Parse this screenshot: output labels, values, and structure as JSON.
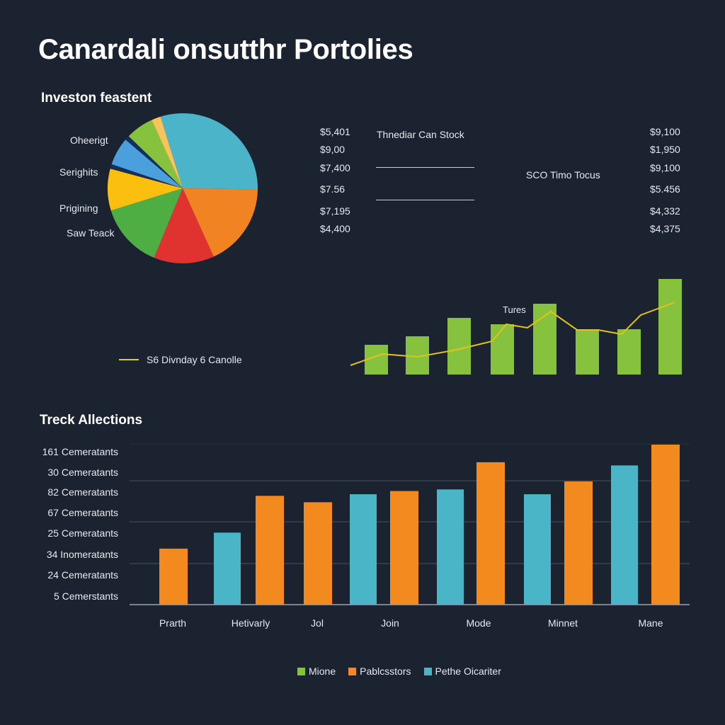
{
  "page": {
    "title": "Canardali onsutthr Portolies",
    "background": "#1b2230"
  },
  "chart_data": [
    {
      "type": "pie",
      "title": "Investon feastent",
      "labels": [
        "Oheerigt",
        "Serighits",
        "Prigining",
        "Saw Teack"
      ],
      "slices": [
        {
          "value": 30,
          "color": "#4bb4c8"
        },
        {
          "value": 18,
          "color": "#f28322"
        },
        {
          "value": 13,
          "color": "#e0322f"
        },
        {
          "value": 14,
          "color": "#4eae43"
        },
        {
          "value": 9,
          "color": "#fbbf0f"
        },
        {
          "value": 1,
          "color": "#13305a"
        },
        {
          "value": 6,
          "color": "#4a9fdc"
        },
        {
          "value": 1,
          "color": "#13305a"
        },
        {
          "value": 6,
          "color": "#86c23d"
        },
        {
          "value": 2,
          "color": "#f6c45a"
        }
      ]
    },
    {
      "type": "table",
      "title": "Thnediar Can Stock",
      "left_values": [
        "$5,401",
        "$9,00",
        "$7,400",
        "$7.56",
        "$7,195",
        "$4,400"
      ],
      "right_label": "SCO Timo Tocus",
      "right_values": [
        "$9,100",
        "$1,950",
        "$9,100",
        "$5.456",
        "$4,332",
        "$4,375"
      ]
    },
    {
      "type": "bar",
      "annotation": "Tures",
      "legend": "S6 Divnday 6 Canolle",
      "bar_color": "#86c23d",
      "line_color": "#e2c21c",
      "values": [
        42,
        54,
        80,
        71,
        100,
        64,
        64,
        135
      ],
      "line": [
        13,
        29,
        25,
        35,
        47,
        71,
        66,
        89,
        63,
        63,
        57,
        84,
        102
      ],
      "ylim": [
        0,
        140
      ]
    },
    {
      "type": "bar",
      "title": "Treck Allections",
      "ytick_labels": [
        "161 Cemeratants",
        "30 Cemeratants",
        "82 Cemeratants",
        "67 Cemeratants",
        "25 Cemeratants",
        "34 Inomeratants",
        "24 Cemeratants",
        "5 Cemerstants"
      ],
      "categories": [
        "Prarth",
        "Hetivarly",
        "Jol",
        "Join",
        "Mode",
        "Minnet",
        "Mane"
      ],
      "legend": [
        {
          "name": "Mione",
          "color": "#86c23d"
        },
        {
          "name": "Pablcsstors",
          "color": "#f28a1f"
        },
        {
          "name": "Pethe Oicariter",
          "color": "#4ab5c6"
        }
      ],
      "bars": [
        {
          "series": "Pablcsstors",
          "value": 35
        },
        {
          "series": "Pethe Oicariter",
          "value": 45
        },
        {
          "series": "Pablcsstors",
          "value": 68
        },
        {
          "series": "Pablcsstors",
          "value": 64
        },
        {
          "series": "Pethe Oicariter",
          "value": 69
        },
        {
          "series": "Pablcsstors",
          "value": 71
        },
        {
          "series": "Pethe Oicariter",
          "value": 72
        },
        {
          "series": "Pablcsstors",
          "value": 89
        },
        {
          "series": "Pethe Oicariter",
          "value": 69
        },
        {
          "series": "Pablcsstors",
          "value": 77
        },
        {
          "series": "Pethe Oicariter",
          "value": 87
        },
        {
          "series": "Pablcsstors",
          "value": 100
        }
      ],
      "ylim": [
        0,
        100
      ],
      "grid": true
    }
  ]
}
